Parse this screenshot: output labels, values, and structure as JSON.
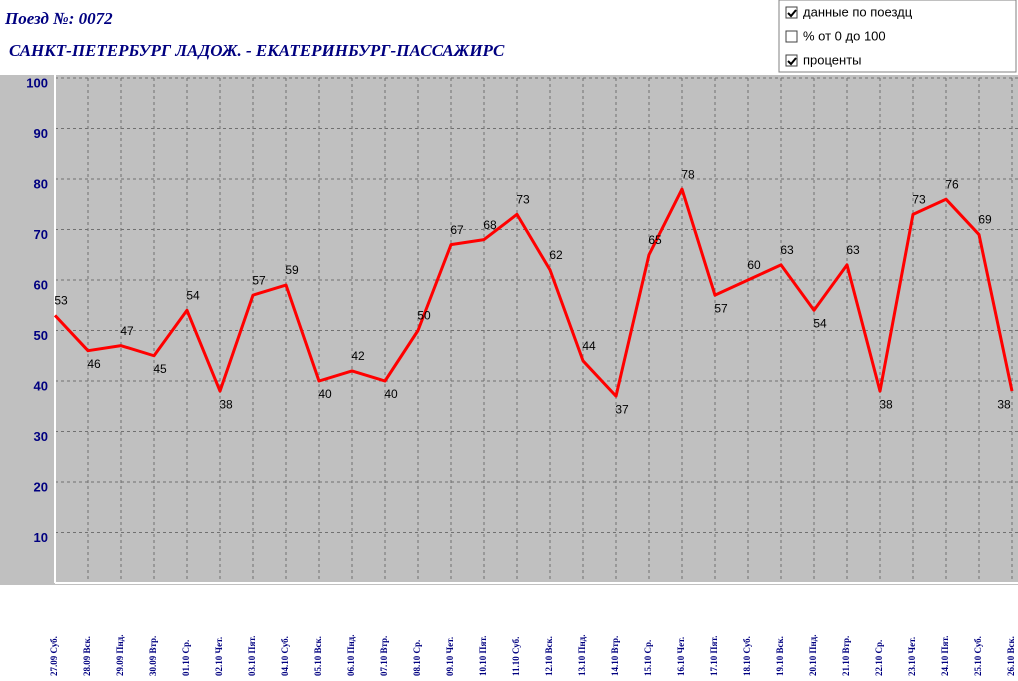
{
  "chart_data": {
    "type": "line",
    "title": "Поезд №: 0072",
    "subtitle": "САНКТ-ПЕТЕРБУРГ ЛАДОЖ. -  ЕКАТЕРИНБУРГ-ПАССАЖИРС",
    "categories": [
      "27.09 Суб.",
      "28.09 Вск.",
      "29.09 Пнд.",
      "30.09 Втр.",
      "01.10 Ср.",
      "02.10 Чет.",
      "03.10 Пят.",
      "04.10 Суб.",
      "05.10 Вск.",
      "06.10 Пнд.",
      "07.10 Втр.",
      "08.10 Ср.",
      "09.10 Чет.",
      "10.10 Пят.",
      "11.10 Суб.",
      "12.10 Вск.",
      "13.10 Пнд.",
      "14.10 Втр.",
      "15.10 Ср.",
      "16.10 Чет.",
      "17.10 Пят.",
      "18.10 Суб.",
      "19.10 Вск.",
      "20.10 Пнд.",
      "21.10 Втр.",
      "22.10 Ср.",
      "23.10 Чет.",
      "24.10 Пят.",
      "25.10 Суб.",
      "26.10 Вск."
    ],
    "values": [
      53,
      46,
      47,
      45,
      54,
      38,
      57,
      59,
      40,
      42,
      40,
      50,
      67,
      68,
      73,
      62,
      44,
      37,
      65,
      78,
      57,
      60,
      63,
      54,
      63,
      38,
      73,
      76,
      69,
      38
    ],
    "color": "#ff0000",
    "ylim": [
      0,
      100
    ],
    "yticks": [
      10,
      20,
      30,
      40,
      50,
      60,
      70,
      80,
      90,
      100
    ],
    "grid": true
  },
  "controls": [
    {
      "label": "данные по поездц",
      "checked": true
    },
    {
      "label": "% от 0 до 100",
      "checked": false
    },
    {
      "label": "проценты",
      "checked": true
    }
  ]
}
